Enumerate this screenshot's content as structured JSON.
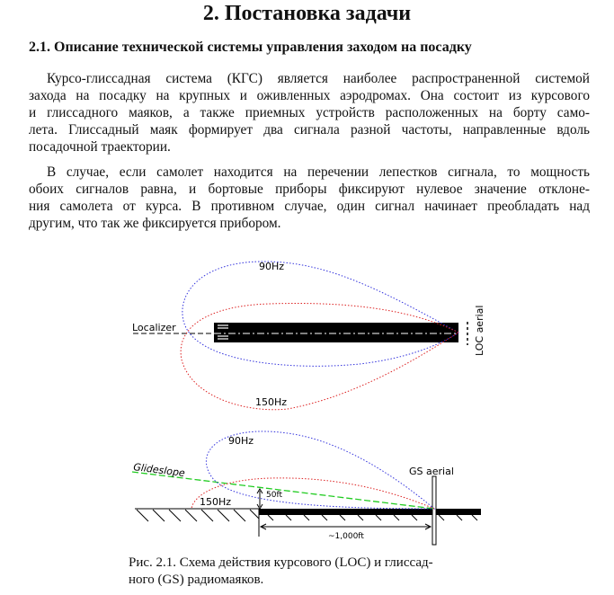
{
  "chapter_title": "2. Постановка задачи",
  "section_title": "2.1. Описание технической системы управления заходом на посадку",
  "paragraphs": [
    {
      "lines": [
        "Курсо-глиссадная система (КГС) является наиболее распространенной системой",
        "захода на посадку на крупных и оживленных аэродромах. Она состоит из курсового",
        "и глиссадного маяков, а также приемных устройств расположенных на борту само-",
        "лета. Глиссадный маяк формирует два сигнала разной частоты, направленные вдоль",
        "посадочной траектории."
      ]
    },
    {
      "lines": [
        "В случае, если самолет находится на перечении лепестков сигнала, то мощность",
        "обоих сигналов равна, и бортовые приборы фиксируют нулевое значение отклоне-",
        "ния самолета от курса. В противном случае, один сигнал начинает преобладать над",
        "другим, что так же фиксируется прибором."
      ]
    }
  ],
  "figure": {
    "localizer": {
      "label": "Localizer",
      "lobe_top": "90Hz",
      "lobe_bottom": "150Hz",
      "aerial": "LOC aerial"
    },
    "glideslope": {
      "label": "Glideslope",
      "lobe_top": "90Hz",
      "lobe_bottom": "150Hz",
      "aerial": "GS aerial",
      "height": "50ft",
      "distance": "~1,000ft"
    },
    "colors": {
      "lobe_90": "#3333dd",
      "lobe_150": "#dd2222",
      "glideslope": "#22cc22"
    },
    "caption": [
      "Рис. 2.1. Схема действия курсового (LOC) и глиссад-",
      "ного (GS) радиомаяков."
    ]
  }
}
